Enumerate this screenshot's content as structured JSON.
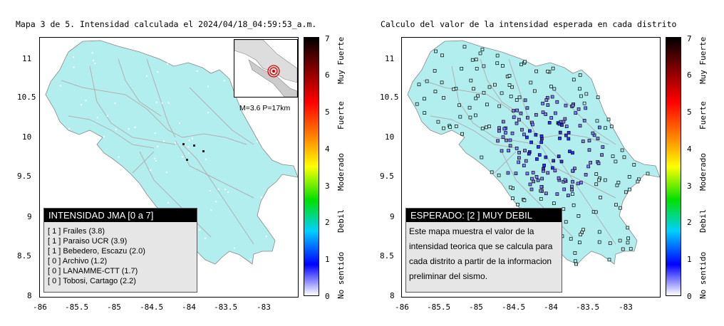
{
  "left_panel": {
    "title": "Mapa 3 de 5. Intensidad calculada el 2024/04/18_04:59:53_a.m.",
    "x_ticks": [
      "-86",
      "-85.5",
      "-85",
      "-84.5",
      "-84",
      "-83.5",
      "-83"
    ],
    "y_ticks": [
      "11",
      "10.5",
      "10",
      "9.5",
      "9",
      "8.5",
      "8"
    ],
    "inset_label": "M=3.6 P=17km",
    "legend": {
      "header": "INTENSIDAD JMA [0 a 7]",
      "rows": [
        "[ 1 ]  Frailes (3.8)",
        "[ 1 ]  Paraiso UCR (3.9)",
        "[ 1 ]  Bebedero, Escazu (2.0)",
        "[ 0 ]  Archivo (1.2)",
        "[ 0 ]  LANAMME-CTT (1.7)",
        "[ 0 ]  Tobosi, Cartago (2.2)"
      ]
    }
  },
  "right_panel": {
    "title": "Calculo del valor de la intensidad esperada en cada distrito",
    "x_ticks": [
      "-86",
      "-85.5",
      "-85",
      "-84.5",
      "-84",
      "-83.5",
      "-83"
    ],
    "y_ticks": [
      "11",
      "10.5",
      "10",
      "9.5",
      "9",
      "8.5",
      "8"
    ],
    "description": {
      "header": "ESPERADO: [2 ] MUY DEBIL",
      "text": "Este mapa muestra el valor de la intensidad teorica que se calcula para cada distrito a partir de la informacion preliminar del sismo."
    }
  },
  "colorbar": {
    "ticks": [
      "7",
      "6",
      "5",
      "4",
      "3",
      "2",
      "1",
      "0"
    ],
    "labels": [
      "Muy Fuerte",
      "Fuerte",
      "Moderado",
      "Debil",
      "No sentido"
    ],
    "colors": [
      "#000000",
      "#8b0000",
      "#ff0000",
      "#ff8000",
      "#ffff00",
      "#00e000",
      "#00d0ff",
      "#0000ff",
      "#ffffff"
    ]
  },
  "map_colors": {
    "land": "#b2eeee",
    "roads": "#b0b0b0",
    "district_mid": "#8080ff",
    "district_high": "#3030ff",
    "district_low": "#b2eeee"
  }
}
